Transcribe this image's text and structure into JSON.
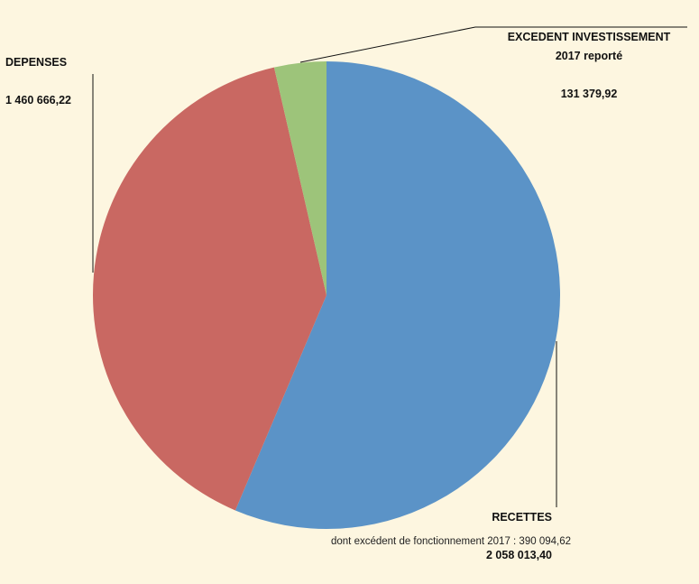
{
  "chart_data": {
    "type": "pie",
    "categories": [
      "RECETTES",
      "DEPENSES",
      "EXCEDENT INVESTISSEMENT\n2017   reporté"
    ],
    "values": [
      2058013.4,
      1460666.22,
      131379.92
    ],
    "value_labels": [
      "2 058 013,40",
      "1 460 666,22",
      "131 379,92"
    ],
    "colors": [
      "#5b93c7",
      "#c96862",
      "#9dc47a"
    ],
    "annotation": "dont excédent de fonctionnement 2017 : 390 094,62"
  }
}
